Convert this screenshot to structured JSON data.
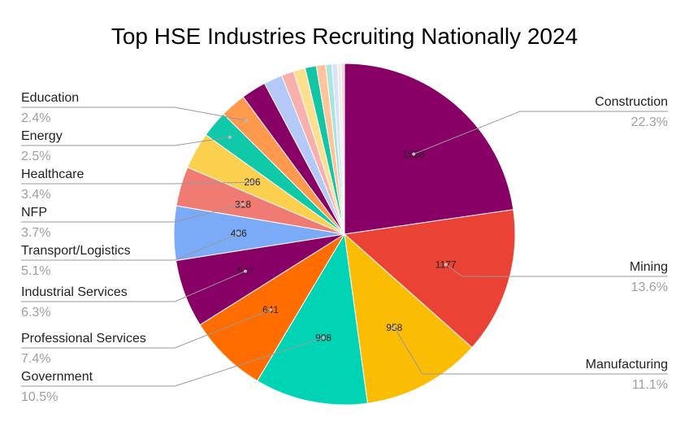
{
  "chart_data": {
    "type": "pie",
    "title": "Top HSE Industries Recruiting Nationally 2024",
    "slices": [
      {
        "name": "Construction",
        "value": 1928,
        "pct": "22.3%",
        "color": "#880066",
        "value_label": "1928",
        "show_name": true
      },
      {
        "name": "Mining",
        "value": 1177,
        "pct": "13.6%",
        "color": "#ea4335",
        "value_label": "1177",
        "show_name": true
      },
      {
        "name": "Manufacturing",
        "value": 958,
        "pct": "11.1%",
        "color": "#fbbc04",
        "value_label": "958",
        "show_name": true
      },
      {
        "name": "Government",
        "value": 908,
        "pct": "10.5%",
        "color": "#00d4b4",
        "value_label": "908",
        "show_name": true
      },
      {
        "name": "Professional Services",
        "value": 641,
        "pct": "7.4%",
        "color": "#ff6d01",
        "value_label": "641",
        "show_name": true
      },
      {
        "name": "Industrial Services",
        "value": 547,
        "pct": "6.3%",
        "color": "#880066",
        "value_label": "547",
        "show_name": true
      },
      {
        "name": "Transport/Logistics",
        "value": 436,
        "pct": "5.1%",
        "color": "#7baaf7",
        "value_label": "436",
        "show_name": true
      },
      {
        "name": "NFP",
        "value": 318,
        "pct": "3.7%",
        "color": "#f07b72",
        "value_label": "318",
        "show_name": true
      },
      {
        "name": "Healthcare",
        "value": 296,
        "pct": "3.4%",
        "color": "#fcd04f",
        "value_label": "296",
        "show_name": true
      },
      {
        "name": "Energy",
        "value": 216,
        "pct": "2.5%",
        "color": "#10c9a8",
        "value_label": "",
        "show_name": true
      },
      {
        "name": "Education",
        "value": 207,
        "pct": "2.4%",
        "color": "#ff994d",
        "value_label": "",
        "show_name": true
      },
      {
        "name": "",
        "value": 200,
        "pct": "",
        "color": "#880066",
        "value_label": "",
        "show_name": false
      },
      {
        "name": "",
        "value": 150,
        "pct": "",
        "color": "#b5c9f8",
        "value_label": "",
        "show_name": false
      },
      {
        "name": "",
        "value": 100,
        "pct": "",
        "color": "#f7b0ab",
        "value_label": "",
        "show_name": false
      },
      {
        "name": "",
        "value": 95,
        "pct": "",
        "color": "#fde08f",
        "value_label": "",
        "show_name": false
      },
      {
        "name": "",
        "value": 90,
        "pct": "",
        "color": "#12c5a4",
        "value_label": "",
        "show_name": false
      },
      {
        "name": "",
        "value": 75,
        "pct": "",
        "color": "#ffc49a",
        "value_label": "",
        "show_name": false
      },
      {
        "name": "",
        "value": 50,
        "pct": "",
        "color": "#a8e6dd",
        "value_label": "",
        "show_name": false
      },
      {
        "name": "",
        "value": 45,
        "pct": "",
        "color": "#d6e3fb",
        "value_label": "",
        "show_name": false
      },
      {
        "name": "",
        "value": 30,
        "pct": "",
        "color": "#f5ece0",
        "value_label": "",
        "show_name": false
      },
      {
        "name": "",
        "value": 25,
        "pct": "",
        "color": "#f2d0de",
        "value_label": "",
        "show_name": false
      }
    ],
    "start_angle_deg": 0,
    "direction": "clockwise",
    "legend": "none"
  }
}
